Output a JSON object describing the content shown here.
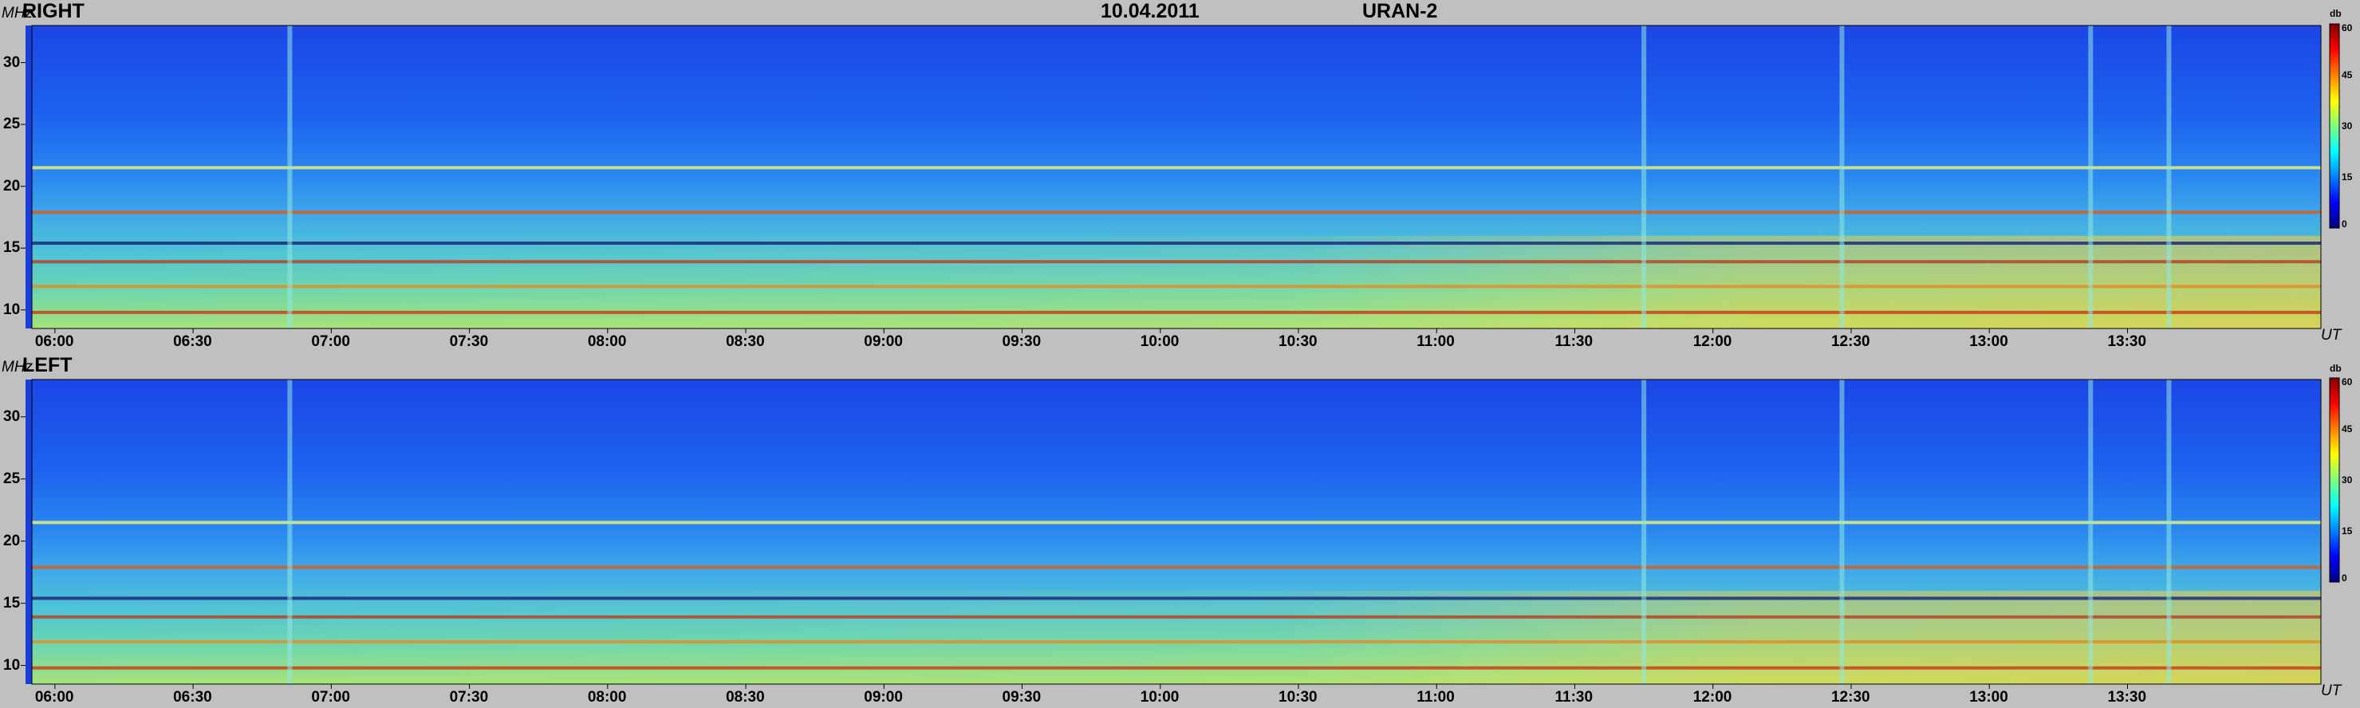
{
  "header": {
    "date": "10.04.2011",
    "instrument": "URAN-2"
  },
  "colors": {
    "scale": [
      "#00007f",
      "#0000ff",
      "#0080ff",
      "#00ffff",
      "#80ff80",
      "#ffff00",
      "#ff8000",
      "#ff0000",
      "#7f0000"
    ],
    "background": "#c0c0c0"
  },
  "chart_data": [
    {
      "type": "heatmap",
      "title": "RIGHT",
      "ylabel": "MHz",
      "xlabel": "UT",
      "x_ticks": [
        "06:00",
        "06:30",
        "07:00",
        "07:30",
        "08:00",
        "08:30",
        "09:00",
        "09:30",
        "10:00",
        "10:30",
        "11:00",
        "11:30",
        "12:00",
        "12:30",
        "13:00",
        "13:30"
      ],
      "y_ticks": [
        10,
        15,
        20,
        25,
        30
      ],
      "ylim": [
        8.5,
        33
      ],
      "colorbar": {
        "label": "db",
        "ticks": [
          0,
          15,
          30,
          45,
          60
        ],
        "range": [
          0,
          60
        ]
      },
      "features": {
        "bands_mhz": [
          9.8,
          11.9,
          13.9,
          15.4,
          17.9,
          21.5
        ],
        "broadband_times": [
          "06:51",
          "11:45",
          "12:28",
          "13:22",
          "13:39"
        ]
      }
    },
    {
      "type": "heatmap",
      "title": "LEFT",
      "ylabel": "MHz",
      "xlabel": "UT",
      "x_ticks": [
        "06:00",
        "06:30",
        "07:00",
        "07:30",
        "08:00",
        "08:30",
        "09:00",
        "09:30",
        "10:00",
        "10:30",
        "11:00",
        "11:30",
        "12:00",
        "12:30",
        "13:00",
        "13:30"
      ],
      "y_ticks": [
        10,
        15,
        20,
        25,
        30
      ],
      "ylim": [
        8.5,
        33
      ],
      "colorbar": {
        "label": "db",
        "ticks": [
          0,
          15,
          30,
          45,
          60
        ],
        "range": [
          0,
          60
        ]
      },
      "features": {
        "bands_mhz": [
          9.8,
          11.9,
          13.9,
          15.4,
          17.9,
          21.5
        ],
        "broadband_times": [
          "06:51",
          "11:45",
          "12:28",
          "13:22",
          "13:39"
        ]
      }
    }
  ]
}
